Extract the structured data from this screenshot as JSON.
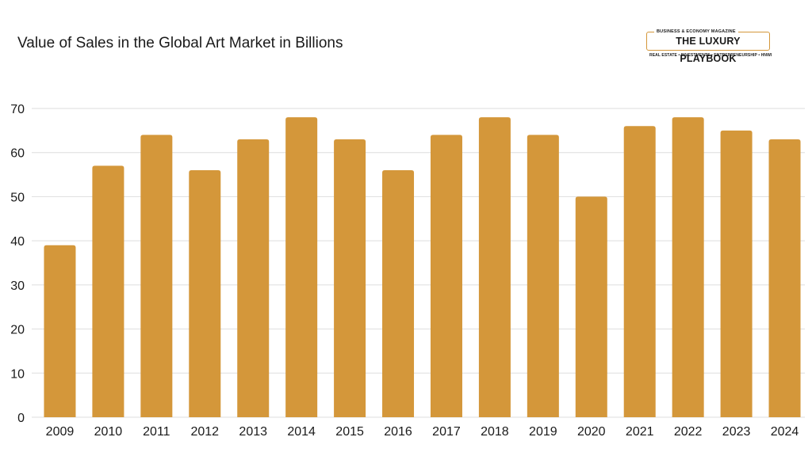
{
  "colors": {
    "bar": "#d4973a",
    "grid": "#dedede",
    "text": "#1a1a1a"
  },
  "logo": {
    "kicker": "BUSINESS & ECONOMY MAGAZINE",
    "name": "THE LUXURY PLAYBOOK",
    "tagline": "REAL ESTATE • INVESTMENTS • ENTREPRENEURSHIP • HNWI"
  },
  "chart_data": {
    "type": "bar",
    "title": "Value of Sales in the Global Art Market in Billions",
    "categories": [
      "2009",
      "2010",
      "2011",
      "2012",
      "2013",
      "2014",
      "2015",
      "2016",
      "2017",
      "2018",
      "2019",
      "2020",
      "2021",
      "2022",
      "2023",
      "2024"
    ],
    "values": [
      39,
      57,
      64,
      56,
      63,
      68,
      63,
      56,
      64,
      68,
      64,
      50,
      66,
      68,
      65,
      63
    ],
    "ylim": [
      0,
      70
    ],
    "yticks": [
      0,
      10,
      20,
      30,
      40,
      50,
      60,
      70
    ],
    "grid": true,
    "legend": "none"
  }
}
